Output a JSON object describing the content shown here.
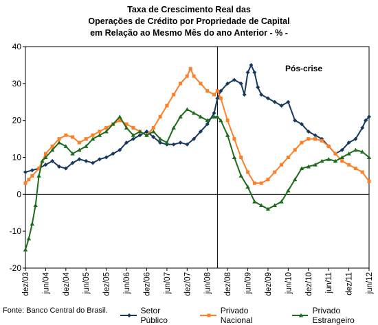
{
  "chart_data": {
    "type": "line",
    "title_lines": [
      "Taxa de Crescimento Real das",
      "Operações de Crédito por Propriedade de Capital",
      "em Relação ao Mesmo Mês do ano Anterior - % -"
    ],
    "ylim": [
      -20,
      40
    ],
    "yticks": [
      "-20",
      "-10",
      "0",
      "10",
      "20",
      "30",
      "40"
    ],
    "x_start": "2003-12",
    "x_end": "2012-06",
    "x_tick_labels": [
      "dez/03",
      "jun/04",
      "dez/04",
      "jun/05",
      "dez/05",
      "jun/06",
      "dez/06",
      "jun/07",
      "dez/07",
      "jun/08",
      "dez/08",
      "jun/09",
      "dez/09",
      "jun/10",
      "dez/10",
      "jun/11",
      "dez/11",
      "jun/12"
    ],
    "vline_date": "2008-09",
    "annotation": "Pós-crise",
    "grid": false,
    "legend_position": "bottom",
    "series": [
      {
        "name": "Setor Público",
        "color": "#17375E",
        "marker": "diamond",
        "points": [
          [
            "2003-12",
            6
          ],
          [
            "2004-02",
            6.5
          ],
          [
            "2004-04",
            7
          ],
          [
            "2004-06",
            8
          ],
          [
            "2004-08",
            9
          ],
          [
            "2004-10",
            7.5
          ],
          [
            "2004-12",
            7
          ],
          [
            "2005-02",
            8.5
          ],
          [
            "2005-04",
            9.5
          ],
          [
            "2005-06",
            9
          ],
          [
            "2005-08",
            8.5
          ],
          [
            "2005-10",
            9.5
          ],
          [
            "2005-12",
            10
          ],
          [
            "2006-02",
            11
          ],
          [
            "2006-04",
            12
          ],
          [
            "2006-06",
            14
          ],
          [
            "2006-08",
            15
          ],
          [
            "2006-10",
            16
          ],
          [
            "2006-12",
            17
          ],
          [
            "2007-02",
            15.5
          ],
          [
            "2007-04",
            14
          ],
          [
            "2007-06",
            13.5
          ],
          [
            "2007-08",
            13.5
          ],
          [
            "2007-10",
            14
          ],
          [
            "2007-12",
            13.5
          ],
          [
            "2008-02",
            15
          ],
          [
            "2008-04",
            17
          ],
          [
            "2008-06",
            19
          ],
          [
            "2008-08",
            22
          ],
          [
            "2008-09",
            26
          ],
          [
            "2008-10",
            28
          ],
          [
            "2008-12",
            30
          ],
          [
            "2009-02",
            31
          ],
          [
            "2009-04",
            30
          ],
          [
            "2009-05",
            27
          ],
          [
            "2009-06",
            33
          ],
          [
            "2009-07",
            35
          ],
          [
            "2009-08",
            33
          ],
          [
            "2009-09",
            29
          ],
          [
            "2009-10",
            27
          ],
          [
            "2009-12",
            26
          ],
          [
            "2010-02",
            25
          ],
          [
            "2010-04",
            24
          ],
          [
            "2010-06",
            25
          ],
          [
            "2010-08",
            20
          ],
          [
            "2010-10",
            19
          ],
          [
            "2010-12",
            17
          ],
          [
            "2011-02",
            16
          ],
          [
            "2011-04",
            15
          ],
          [
            "2011-06",
            13
          ],
          [
            "2011-08",
            11
          ],
          [
            "2011-10",
            12
          ],
          [
            "2011-12",
            14
          ],
          [
            "2012-02",
            15
          ],
          [
            "2012-04",
            18
          ],
          [
            "2012-05",
            20
          ],
          [
            "2012-06",
            21
          ]
        ]
      },
      {
        "name": "Privado Nacional",
        "color": "#FF7F27",
        "marker": "square",
        "points": [
          [
            "2003-12",
            3
          ],
          [
            "2004-01",
            4
          ],
          [
            "2004-02",
            5
          ],
          [
            "2004-04",
            7
          ],
          [
            "2004-06",
            11
          ],
          [
            "2004-08",
            13
          ],
          [
            "2004-10",
            15
          ],
          [
            "2004-12",
            16
          ],
          [
            "2005-02",
            15.5
          ],
          [
            "2005-04",
            14
          ],
          [
            "2005-06",
            15
          ],
          [
            "2005-08",
            16
          ],
          [
            "2005-10",
            17
          ],
          [
            "2005-12",
            18
          ],
          [
            "2006-02",
            19
          ],
          [
            "2006-04",
            20
          ],
          [
            "2006-06",
            19
          ],
          [
            "2006-08",
            18
          ],
          [
            "2006-10",
            17
          ],
          [
            "2006-12",
            16
          ],
          [
            "2007-02",
            18
          ],
          [
            "2007-04",
            21
          ],
          [
            "2007-06",
            24
          ],
          [
            "2007-08",
            27
          ],
          [
            "2007-10",
            30
          ],
          [
            "2007-12",
            32
          ],
          [
            "2008-01",
            34
          ],
          [
            "2008-02",
            32
          ],
          [
            "2008-04",
            30
          ],
          [
            "2008-06",
            28
          ],
          [
            "2008-08",
            27
          ],
          [
            "2008-09",
            28
          ],
          [
            "2008-10",
            26
          ],
          [
            "2008-12",
            20
          ],
          [
            "2009-02",
            15
          ],
          [
            "2009-04",
            10
          ],
          [
            "2009-06",
            6
          ],
          [
            "2009-08",
            3
          ],
          [
            "2009-10",
            3
          ],
          [
            "2009-12",
            4
          ],
          [
            "2010-02",
            6
          ],
          [
            "2010-04",
            8
          ],
          [
            "2010-06",
            10
          ],
          [
            "2010-08",
            12
          ],
          [
            "2010-10",
            14
          ],
          [
            "2010-12",
            15
          ],
          [
            "2011-02",
            15
          ],
          [
            "2011-04",
            14.5
          ],
          [
            "2011-06",
            13
          ],
          [
            "2011-08",
            11
          ],
          [
            "2011-10",
            9
          ],
          [
            "2011-12",
            8
          ],
          [
            "2012-02",
            7
          ],
          [
            "2012-04",
            6
          ],
          [
            "2012-06",
            3.5
          ]
        ]
      },
      {
        "name": "Privado Estrangeiro",
        "color": "#1E6B1E",
        "marker": "triangle",
        "points": [
          [
            "2003-12",
            -15
          ],
          [
            "2004-01",
            -12
          ],
          [
            "2004-02",
            -8
          ],
          [
            "2004-03",
            -3
          ],
          [
            "2004-04",
            5
          ],
          [
            "2004-05",
            9
          ],
          [
            "2004-06",
            10
          ],
          [
            "2004-08",
            12
          ],
          [
            "2004-10",
            14
          ],
          [
            "2004-12",
            13
          ],
          [
            "2005-02",
            11
          ],
          [
            "2005-04",
            12
          ],
          [
            "2005-06",
            13
          ],
          [
            "2005-08",
            15
          ],
          [
            "2005-10",
            16
          ],
          [
            "2005-12",
            17
          ],
          [
            "2006-02",
            19
          ],
          [
            "2006-04",
            21
          ],
          [
            "2006-06",
            18
          ],
          [
            "2006-08",
            16
          ],
          [
            "2006-10",
            17
          ],
          [
            "2006-12",
            16
          ],
          [
            "2007-02",
            17
          ],
          [
            "2007-04",
            15
          ],
          [
            "2007-06",
            14
          ],
          [
            "2007-08",
            18
          ],
          [
            "2007-10",
            21
          ],
          [
            "2007-12",
            23
          ],
          [
            "2008-02",
            22
          ],
          [
            "2008-04",
            21
          ],
          [
            "2008-06",
            20
          ],
          [
            "2008-08",
            21
          ],
          [
            "2008-09",
            21
          ],
          [
            "2008-10",
            20
          ],
          [
            "2008-12",
            16
          ],
          [
            "2009-02",
            10
          ],
          [
            "2009-04",
            5
          ],
          [
            "2009-06",
            2
          ],
          [
            "2009-08",
            -2
          ],
          [
            "2009-10",
            -3
          ],
          [
            "2009-12",
            -4
          ],
          [
            "2010-02",
            -3
          ],
          [
            "2010-04",
            -2
          ],
          [
            "2010-06",
            1
          ],
          [
            "2010-08",
            4
          ],
          [
            "2010-10",
            7
          ],
          [
            "2010-12",
            7.5
          ],
          [
            "2011-02",
            8
          ],
          [
            "2011-04",
            9
          ],
          [
            "2011-06",
            9.5
          ],
          [
            "2011-08",
            9
          ],
          [
            "2011-10",
            10
          ],
          [
            "2011-12",
            11
          ],
          [
            "2012-02",
            12
          ],
          [
            "2012-04",
            11.5
          ],
          [
            "2012-06",
            10
          ]
        ]
      }
    ],
    "source_note": "Fonte: Banco Central do Brasil."
  }
}
